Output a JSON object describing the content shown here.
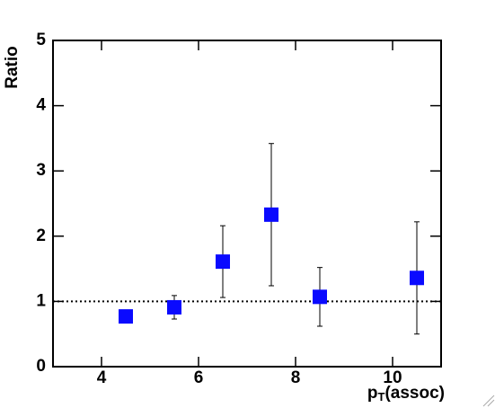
{
  "chart_data": {
    "type": "scatter",
    "y_label": "Ratio",
    "x_label": {
      "main": "p",
      "sub": "T",
      "rest": "(assoc)"
    },
    "x": [
      4.5,
      5.5,
      6.5,
      7.5,
      8.5,
      10.5
    ],
    "values": [
      0.77,
      0.91,
      1.61,
      2.33,
      1.07,
      1.36
    ],
    "errors": [
      0.07,
      0.18,
      0.55,
      1.09,
      0.45,
      0.86
    ],
    "color": "#0a0aff",
    "reference_line": 1,
    "xlim": [
      3,
      11
    ],
    "xticks": [
      4,
      6,
      8,
      10
    ],
    "ylim": [
      0,
      5
    ],
    "yticks": [
      0,
      1,
      2,
      3,
      4,
      5
    ]
  }
}
